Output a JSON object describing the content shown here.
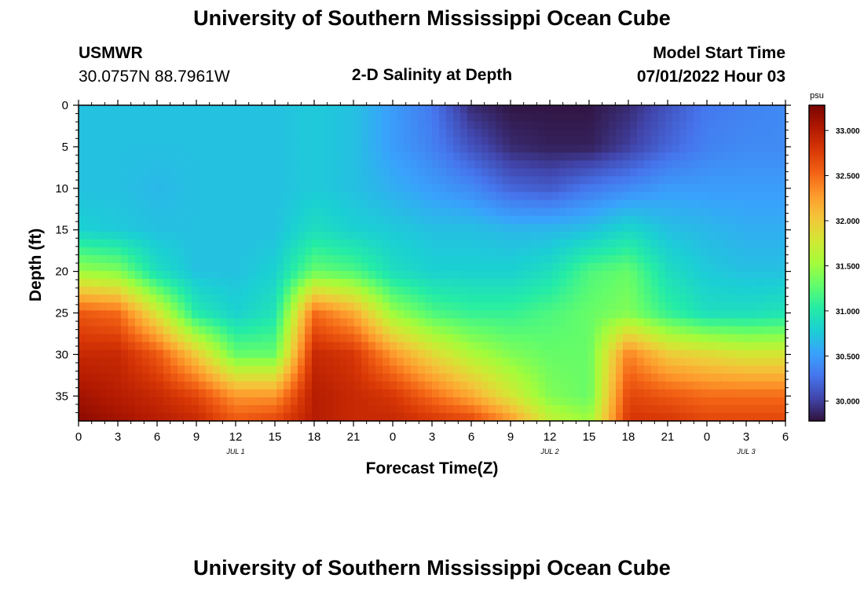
{
  "page": {
    "top_title": "University of Southern Mississippi Ocean Cube",
    "bottom_title": "University of Southern Mississippi Ocean Cube"
  },
  "header": {
    "station": "USMWR",
    "coords": "30.0757N  88.7961W",
    "plot_title": "2-D Salinity at Depth",
    "model_label": "Model Start Time",
    "model_time": "07/01/2022 Hour 03"
  },
  "chart_data": {
    "type": "heatmap",
    "title": "2-D Salinity at Depth",
    "xlabel": "Forecast Time(Z)",
    "ylabel": "Depth (ft)",
    "x_range_hours": [
      0,
      54
    ],
    "x_tick_hours": [
      0,
      3,
      6,
      9,
      12,
      15,
      18,
      21,
      24,
      27,
      30,
      33,
      36,
      39,
      42,
      45,
      48,
      51,
      54
    ],
    "x_tick_labels": [
      "0",
      "3",
      "6",
      "9",
      "12",
      "15",
      "18",
      "21",
      "0",
      "3",
      "6",
      "9",
      "12",
      "15",
      "18",
      "21",
      "0",
      "3",
      "6"
    ],
    "date_labels": [
      {
        "text": "JUL 1",
        "hour": 12
      },
      {
        "text": "JUL 2",
        "hour": 36
      },
      {
        "text": "JUL 3",
        "hour": 51
      }
    ],
    "ylim": [
      38,
      0
    ],
    "y_ticks": [
      0,
      5,
      10,
      15,
      20,
      25,
      30,
      35
    ],
    "y_tick_labels": [
      "0",
      "5",
      "10",
      "15",
      "20",
      "25",
      "30",
      "35"
    ],
    "colorbar": {
      "units": "psu",
      "min": 29.78,
      "max": 33.28,
      "ticks": [
        30.0,
        30.5,
        31.0,
        31.5,
        32.0,
        32.5,
        33.0
      ],
      "tick_labels": [
        "30.000",
        "30.500",
        "31.000",
        "31.500",
        "32.000",
        "32.500",
        "33.000"
      ],
      "colormap": [
        "#30123b",
        "#4145ab",
        "#4675ed",
        "#39a2fc",
        "#1bcfd4",
        "#24eca6",
        "#61fc6c",
        "#a4fc3b",
        "#d1e834",
        "#f3c63a",
        "#fe9b2d",
        "#f36315",
        "#d93806",
        "#b11901",
        "#7a0402"
      ]
    },
    "depth_profile_ft": [
      0,
      5,
      10,
      15,
      20,
      25,
      30,
      35,
      38
    ],
    "salinity_keyframes": [
      {
        "hour": 0,
        "values": [
          30.7,
          30.7,
          30.7,
          30.8,
          31.5,
          32.6,
          32.9,
          33.1,
          33.2
        ]
      },
      {
        "hour": 3,
        "values": [
          30.7,
          30.7,
          30.7,
          30.75,
          31.4,
          32.5,
          32.9,
          33.0,
          33.1
        ]
      },
      {
        "hour": 6,
        "values": [
          30.7,
          30.7,
          30.65,
          30.7,
          30.9,
          31.8,
          32.6,
          32.9,
          33.0
        ]
      },
      {
        "hour": 9,
        "values": [
          30.7,
          30.7,
          30.7,
          30.7,
          30.7,
          31.0,
          32.0,
          32.7,
          32.9
        ]
      },
      {
        "hour": 12,
        "values": [
          30.7,
          30.7,
          30.7,
          30.7,
          30.7,
          30.8,
          31.3,
          32.3,
          32.6
        ]
      },
      {
        "hour": 15,
        "values": [
          30.7,
          30.7,
          30.7,
          30.7,
          30.8,
          30.95,
          31.3,
          32.3,
          32.7
        ]
      },
      {
        "hour": 18,
        "values": [
          30.75,
          30.75,
          30.75,
          30.9,
          31.3,
          32.5,
          32.9,
          33.0,
          33.0
        ]
      },
      {
        "hour": 21,
        "values": [
          30.7,
          30.7,
          30.7,
          30.8,
          31.2,
          32.2,
          32.8,
          32.9,
          32.9
        ]
      },
      {
        "hour": 24,
        "values": [
          30.5,
          30.5,
          30.6,
          30.75,
          30.9,
          31.5,
          32.3,
          32.8,
          32.9
        ]
      },
      {
        "hour": 27,
        "values": [
          30.3,
          30.35,
          30.5,
          30.7,
          30.8,
          31.2,
          31.9,
          32.5,
          32.8
        ]
      },
      {
        "hour": 30,
        "values": [
          29.9,
          30.1,
          30.4,
          30.7,
          30.8,
          31.1,
          31.6,
          32.2,
          32.7
        ]
      },
      {
        "hour": 33,
        "values": [
          29.8,
          29.9,
          30.2,
          30.65,
          30.8,
          31.1,
          31.4,
          31.8,
          32.3
        ]
      },
      {
        "hour": 36,
        "values": [
          29.8,
          29.85,
          30.15,
          30.65,
          30.9,
          31.2,
          31.3,
          31.4,
          31.7
        ]
      },
      {
        "hour": 39,
        "values": [
          29.8,
          29.85,
          30.3,
          30.7,
          31.2,
          31.3,
          31.3,
          31.3,
          31.5
        ]
      },
      {
        "hour": 42,
        "values": [
          29.9,
          30.0,
          30.4,
          30.85,
          31.3,
          31.4,
          32.4,
          32.7,
          32.8
        ]
      },
      {
        "hour": 45,
        "values": [
          30.1,
          30.2,
          30.5,
          30.7,
          30.9,
          31.1,
          32.0,
          32.6,
          32.8
        ]
      },
      {
        "hour": 48,
        "values": [
          30.3,
          30.35,
          30.5,
          30.65,
          30.75,
          30.9,
          31.9,
          32.5,
          32.7
        ]
      },
      {
        "hour": 51,
        "values": [
          30.35,
          30.4,
          30.5,
          30.6,
          30.7,
          30.9,
          31.8,
          32.5,
          32.7
        ]
      },
      {
        "hour": 54,
        "values": [
          30.4,
          30.4,
          30.5,
          30.6,
          30.7,
          30.95,
          31.8,
          32.5,
          32.7
        ]
      }
    ]
  }
}
